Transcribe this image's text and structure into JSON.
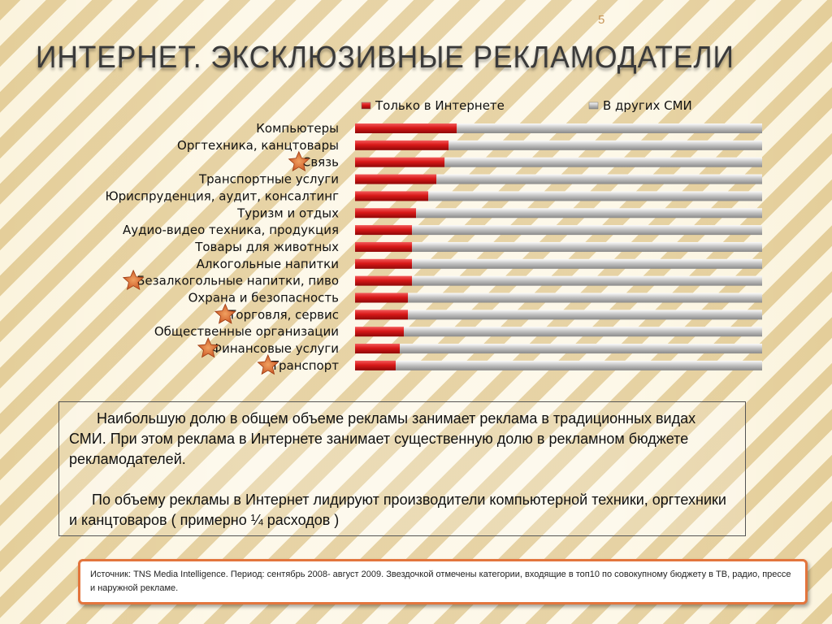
{
  "page_number": "5",
  "title": "ИНТЕРНЕТ. ЭКСКЛЮЗИВНЫЕ РЕКЛАМОДАТЕЛИ",
  "colors": {
    "internet": "#d81818",
    "other": "#bdbdbd",
    "star": "#d9692e",
    "source_border": "#e3753d"
  },
  "chart_data": {
    "type": "bar",
    "orientation": "horizontal",
    "stacked": "percent",
    "legend": {
      "position": "top",
      "entries": [
        "Только в Интернете",
        "В других СМИ"
      ]
    },
    "categories": [
      "Компьютеры",
      "Оргтехника, канцтовары",
      "Связь",
      "Транспортные услуги",
      "Юриспруденция, аудит, консалтинг",
      "Туризм и отдых",
      "Аудио-видео техника, продукция",
      "Товары для животных",
      "Алкогольные напитки",
      "Безалкогольные напитки, пиво",
      "Охрана и безопасность",
      "Торговля, сервис",
      "Общественные организации",
      "Финансовые услуги",
      "Транспорт"
    ],
    "series": [
      {
        "name": "Только в Интернете",
        "values": [
          25,
          23,
          22,
          20,
          18,
          15,
          14,
          14,
          14,
          14,
          13,
          13,
          12,
          11,
          10
        ]
      },
      {
        "name": "В других СМИ",
        "values": [
          75,
          77,
          78,
          80,
          82,
          85,
          86,
          86,
          86,
          86,
          87,
          87,
          88,
          89,
          90
        ]
      }
    ],
    "starred": [
      false,
      false,
      true,
      false,
      false,
      false,
      false,
      false,
      false,
      true,
      false,
      true,
      false,
      true,
      true
    ],
    "xlim": [
      0,
      100
    ]
  },
  "text_box": {
    "paragraph1": "Наибольшую долю  в общем объеме рекламы занимает реклама  в традиционных видах СМИ. При этом реклама в Интернете занимает существенную долю  в рекламном бюджете рекламодателей.",
    "paragraph2": "По объему рекламы в Интернет лидируют производители  компьютерной техники, оргтехники и канцтоваров ( примерно ¼  расходов )"
  },
  "source_note": "Источник: TNS Media Intelligence. Период: сентябрь 2008- август 2009. Звездочкой отмечены категории, входящие в топ10 по совокупному бюджету в ТВ, радио, прессе и наружной рекламе."
}
